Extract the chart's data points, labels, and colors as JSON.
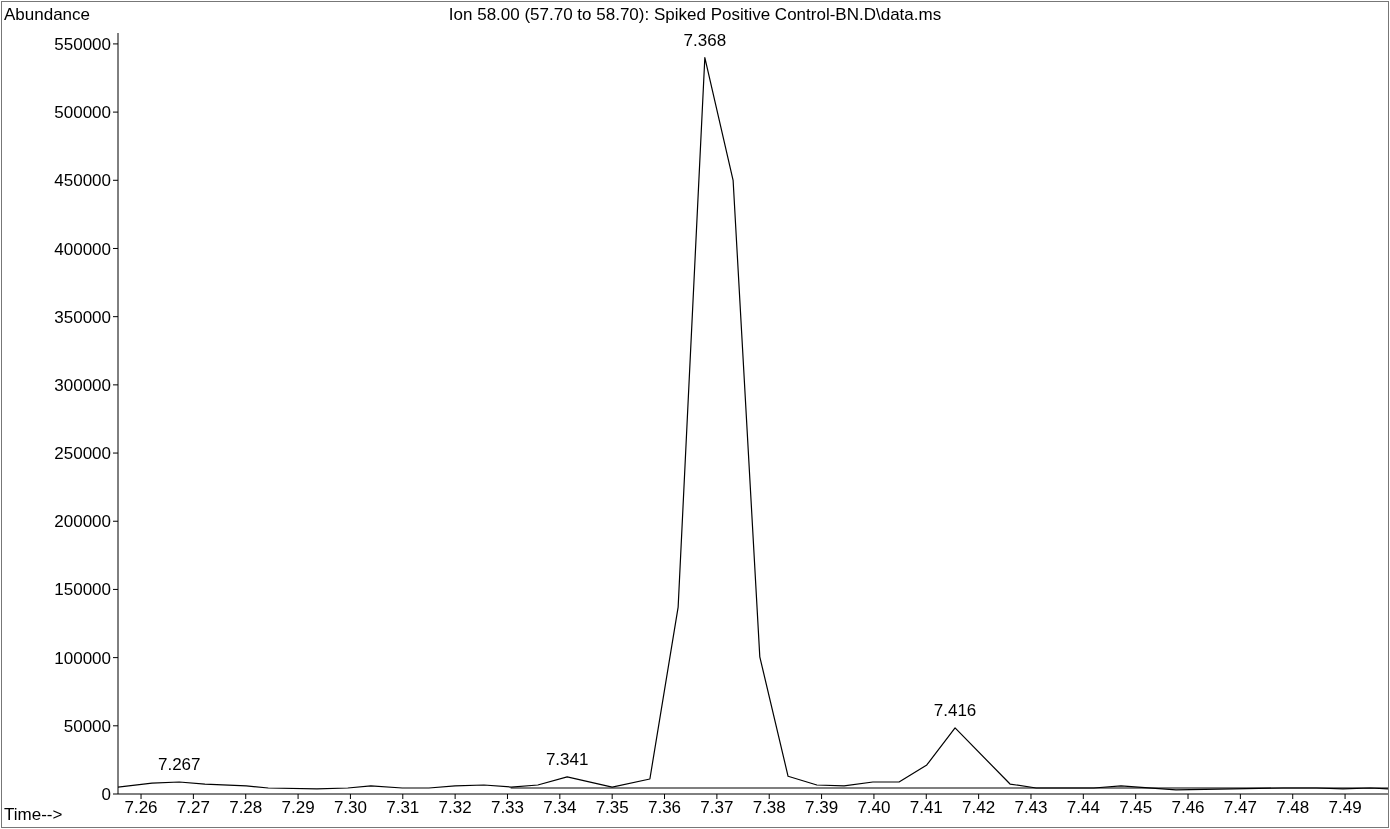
{
  "chart_data": {
    "type": "line",
    "title": "Ion  58.00 (57.70 to 58.70): Spiked Positive Control-BN.D\\data.ms",
    "xlabel": "Time-->",
    "ylabel": "Abundance",
    "xlim": [
      7.2556,
      7.4982
    ],
    "xticks": [
      {
        "value": 7.26,
        "label": "7.26"
      },
      {
        "value": 7.27,
        "label": "7.27"
      },
      {
        "value": 7.28,
        "label": "7.28"
      },
      {
        "value": 7.29,
        "label": "7.29"
      },
      {
        "value": 7.3,
        "label": "7.30"
      },
      {
        "value": 7.31,
        "label": "7.31"
      },
      {
        "value": 7.32,
        "label": "7.32"
      },
      {
        "value": 7.33,
        "label": "7.33"
      },
      {
        "value": 7.34,
        "label": "7.34"
      },
      {
        "value": 7.35,
        "label": "7.35"
      },
      {
        "value": 7.36,
        "label": "7.36"
      },
      {
        "value": 7.37,
        "label": "7.37"
      },
      {
        "value": 7.38,
        "label": "7.38"
      },
      {
        "value": 7.39,
        "label": "7.39"
      },
      {
        "value": 7.4,
        "label": "7.40"
      },
      {
        "value": 7.41,
        "label": "7.41"
      },
      {
        "value": 7.42,
        "label": "7.42"
      },
      {
        "value": 7.43,
        "label": "7.43"
      },
      {
        "value": 7.44,
        "label": "7.44"
      },
      {
        "value": 7.45,
        "label": "7.45"
      },
      {
        "value": 7.46,
        "label": "7.46"
      },
      {
        "value": 7.47,
        "label": "7.47"
      },
      {
        "value": 7.48,
        "label": "7.48"
      },
      {
        "value": 7.49,
        "label": "7.49"
      }
    ],
    "ylim": [
      0,
      558000
    ],
    "yticks": [
      0,
      50000,
      100000,
      150000,
      200000,
      250000,
      300000,
      350000,
      400000,
      450000,
      500000,
      550000
    ],
    "grid": false,
    "legend": false,
    "marker": "none",
    "line_style": "solid",
    "series": [
      {
        "color": "#000000",
        "x": [
          7.2556,
          7.2621,
          7.2673,
          7.2722,
          7.2801,
          7.2843,
          7.2936,
          7.2995,
          7.3039,
          7.3099,
          7.315,
          7.32,
          7.3255,
          7.3307,
          7.3358,
          7.3414,
          7.35,
          7.3572,
          7.3626,
          7.3677,
          7.3731,
          7.3782,
          7.3836,
          7.3891,
          7.3943,
          7.3998,
          7.4048,
          7.4101,
          7.4155,
          7.426,
          7.431,
          7.442,
          7.4472,
          7.4577,
          7.4686,
          7.4782,
          7.4845,
          7.4896,
          7.4948,
          7.4982
        ],
        "values": [
          5100,
          8000,
          8800,
          7300,
          5900,
          4400,
          3700,
          4400,
          5900,
          4400,
          4400,
          5900,
          6600,
          5100,
          6600,
          12500,
          5100,
          11000,
          137000,
          540000,
          450000,
          100600,
          13000,
          6600,
          5900,
          8800,
          8800,
          21300,
          48500,
          7300,
          4400,
          4400,
          5900,
          3000,
          3700,
          4400,
          4400,
          3700,
          4400,
          3700
        ]
      },
      {
        "color": "#000000",
        "x": [
          7.3307,
          7.4982
        ],
        "values": [
          4400,
          4400
        ]
      }
    ],
    "annotations": [
      {
        "text": "7.267",
        "x": 7.2673,
        "y": 8800
      },
      {
        "text": "7.341",
        "x": 7.3414,
        "y": 12500
      },
      {
        "text": "7.368",
        "x": 7.3677,
        "y": 540000
      },
      {
        "text": "7.416",
        "x": 7.4155,
        "y": 48500
      }
    ]
  }
}
